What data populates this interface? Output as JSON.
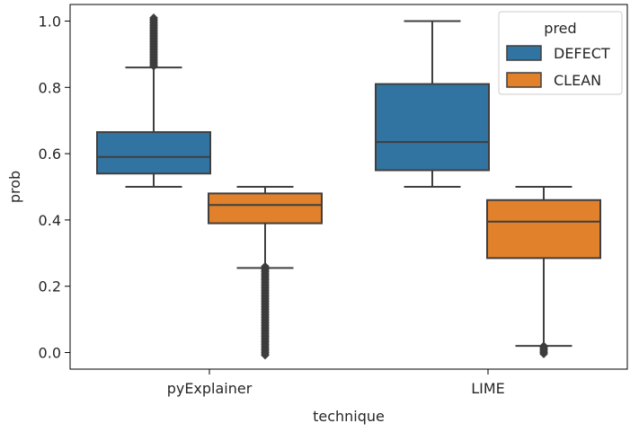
{
  "chart_data": {
    "type": "boxplot",
    "title": "",
    "xlabel": "technique",
    "ylabel": "prob",
    "categories": [
      "pyExplainer",
      "LIME"
    ],
    "ylim": [
      -0.05,
      1.05
    ],
    "yticks": [
      0.0,
      0.2,
      0.4,
      0.6,
      0.8,
      1.0
    ],
    "ytick_labels": [
      "0.0",
      "0.2",
      "0.4",
      "0.6",
      "0.8",
      "1.0"
    ],
    "grid": false,
    "legend": {
      "title": "pred",
      "position": "top-right"
    },
    "series": [
      {
        "name": "DEFECT",
        "color": "#3274a1",
        "boxes": [
          {
            "category": "pyExplainer",
            "whisker_low": 0.5,
            "q1": 0.54,
            "median": 0.59,
            "q3": 0.665,
            "whisker_high": 0.86,
            "outliers_range": [
              0.86,
              1.01
            ]
          },
          {
            "category": "LIME",
            "whisker_low": 0.5,
            "q1": 0.55,
            "median": 0.635,
            "q3": 0.81,
            "whisker_high": 1.0,
            "outliers_range": null
          }
        ]
      },
      {
        "name": "CLEAN",
        "color": "#e1812c",
        "boxes": [
          {
            "category": "pyExplainer",
            "whisker_low": 0.255,
            "q1": 0.39,
            "median": 0.445,
            "q3": 0.48,
            "whisker_high": 0.5,
            "outliers_range": [
              -0.01,
              0.26
            ]
          },
          {
            "category": "LIME",
            "whisker_low": 0.02,
            "q1": 0.285,
            "median": 0.395,
            "q3": 0.46,
            "whisker_high": 0.5,
            "outliers_range": [
              -0.005,
              0.02
            ]
          }
        ]
      }
    ]
  }
}
